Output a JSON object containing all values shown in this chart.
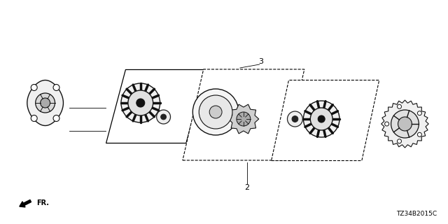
{
  "bg_color": "#ffffff",
  "diagram_code": "TZ34B2015C",
  "fr_label": "FR.",
  "label_2": "2",
  "label_3": "3"
}
